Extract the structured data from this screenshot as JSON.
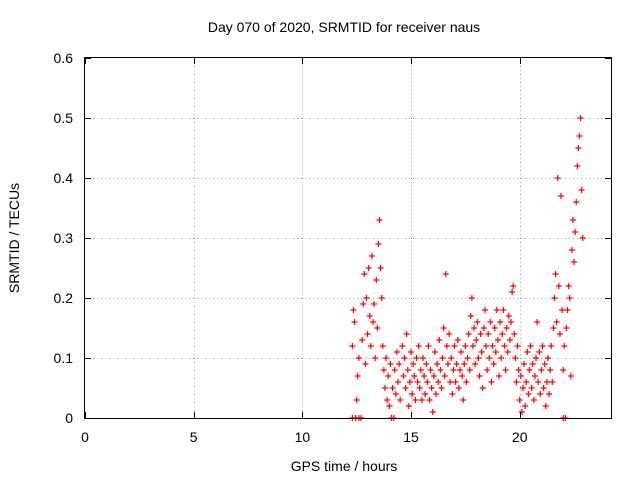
{
  "chart_data": {
    "type": "scatter",
    "title": "Day 070 of 2020, SRMTID for receiver naus",
    "xlabel": "GPS time / hours",
    "ylabel": "SRMTID / TECUs",
    "xlim": [
      0,
      24.2
    ],
    "ylim": [
      0,
      0.6
    ],
    "xticks": [
      0,
      5,
      10,
      15,
      20
    ],
    "xtick_labels": [
      "0",
      "5",
      "10",
      "15",
      "20"
    ],
    "yticks": [
      0,
      0.1,
      0.2,
      0.3,
      0.4,
      0.5,
      0.6
    ],
    "ytick_labels": [
      "0",
      "0.1",
      "0.2",
      "0.3",
      "0.4",
      "0.5",
      "0.6"
    ],
    "grid": true,
    "legend": "none",
    "marker": "+",
    "series": [
      {
        "name": "SRMTID",
        "color": "#ff0000",
        "points": [
          [
            12.3,
            0.12
          ],
          [
            12.3,
            0.0
          ],
          [
            12.35,
            0.18
          ],
          [
            12.4,
            0.16
          ],
          [
            12.45,
            0.0
          ],
          [
            12.5,
            0.03
          ],
          [
            12.55,
            0.07
          ],
          [
            12.6,
            0.1
          ],
          [
            12.6,
            0.0
          ],
          [
            12.7,
            0.0
          ],
          [
            12.75,
            0.13
          ],
          [
            12.8,
            0.19
          ],
          [
            12.85,
            0.24
          ],
          [
            12.9,
            0.09
          ],
          [
            12.95,
            0.2
          ],
          [
            13.0,
            0.14
          ],
          [
            13.05,
            0.25
          ],
          [
            13.1,
            0.17
          ],
          [
            13.15,
            0.12
          ],
          [
            13.2,
            0.27
          ],
          [
            13.25,
            0.16
          ],
          [
            13.3,
            0.19
          ],
          [
            13.35,
            0.1
          ],
          [
            13.4,
            0.23
          ],
          [
            13.45,
            0.15
          ],
          [
            13.5,
            0.29
          ],
          [
            13.55,
            0.33
          ],
          [
            13.6,
            0.25
          ],
          [
            13.65,
            0.2
          ],
          [
            13.7,
            0.12
          ],
          [
            13.75,
            0.08
          ],
          [
            13.8,
            0.05
          ],
          [
            13.85,
            0.1
          ],
          [
            13.9,
            0.03
          ],
          [
            13.95,
            0.07
          ],
          [
            14.0,
            0.02
          ],
          [
            14.05,
            0.09
          ],
          [
            14.1,
            0.0
          ],
          [
            14.15,
            0.05
          ],
          [
            14.2,
            0.0
          ],
          [
            14.25,
            0.08
          ],
          [
            14.3,
            0.04
          ],
          [
            14.35,
            0.11
          ],
          [
            14.4,
            0.06
          ],
          [
            14.45,
            0.09
          ],
          [
            14.5,
            0.03
          ],
          [
            14.6,
            0.12
          ],
          [
            14.65,
            0.07
          ],
          [
            14.7,
            0.1
          ],
          [
            14.75,
            0.05
          ],
          [
            14.8,
            0.14
          ],
          [
            14.85,
            0.08
          ],
          [
            14.9,
            0.02
          ],
          [
            14.95,
            0.06
          ],
          [
            15.0,
            0.11
          ],
          [
            15.05,
            0.04
          ],
          [
            15.1,
            0.09
          ],
          [
            15.15,
            0.07
          ],
          [
            15.2,
            0.03
          ],
          [
            15.25,
            0.1
          ],
          [
            15.3,
            0.06
          ],
          [
            15.35,
            0.12
          ],
          [
            15.4,
            0.05
          ],
          [
            15.45,
            0.08
          ],
          [
            15.5,
            0.03
          ],
          [
            15.55,
            0.1
          ],
          [
            15.6,
            0.07
          ],
          [
            15.65,
            0.04
          ],
          [
            15.7,
            0.09
          ],
          [
            15.75,
            0.06
          ],
          [
            15.8,
            0.12
          ],
          [
            15.85,
            0.03
          ],
          [
            15.9,
            0.08
          ],
          [
            15.95,
            0.05
          ],
          [
            16.0,
            0.01
          ],
          [
            16.05,
            0.07
          ],
          [
            16.1,
            0.11
          ],
          [
            16.15,
            0.04
          ],
          [
            16.2,
            0.09
          ],
          [
            16.25,
            0.06
          ],
          [
            16.3,
            0.13
          ],
          [
            16.35,
            0.08
          ],
          [
            16.4,
            0.05
          ],
          [
            16.45,
            0.1
          ],
          [
            16.5,
            0.15
          ],
          [
            16.55,
            0.07
          ],
          [
            16.6,
            0.24
          ],
          [
            16.65,
            0.12
          ],
          [
            16.7,
            0.09
          ],
          [
            16.75,
            0.14
          ],
          [
            16.8,
            0.06
          ],
          [
            16.85,
            0.1
          ],
          [
            16.9,
            0.04
          ],
          [
            16.95,
            0.08
          ],
          [
            17.0,
            0.12
          ],
          [
            17.05,
            0.06
          ],
          [
            17.1,
            0.09
          ],
          [
            17.15,
            0.13
          ],
          [
            17.2,
            0.05
          ],
          [
            17.25,
            0.08
          ],
          [
            17.3,
            0.11
          ],
          [
            17.35,
            0.07
          ],
          [
            17.4,
            0.03
          ],
          [
            17.45,
            0.09
          ],
          [
            17.5,
            0.12
          ],
          [
            17.55,
            0.06
          ],
          [
            17.6,
            0.1
          ],
          [
            17.65,
            0.14
          ],
          [
            17.7,
            0.08
          ],
          [
            17.75,
            0.17
          ],
          [
            17.8,
            0.2
          ],
          [
            17.85,
            0.12
          ],
          [
            17.9,
            0.15
          ],
          [
            17.95,
            0.09
          ],
          [
            18.0,
            0.13
          ],
          [
            18.05,
            0.16
          ],
          [
            18.1,
            0.1
          ],
          [
            18.15,
            0.07
          ],
          [
            18.2,
            0.14
          ],
          [
            18.25,
            0.11
          ],
          [
            18.3,
            0.05
          ],
          [
            18.35,
            0.15
          ],
          [
            18.4,
            0.18
          ],
          [
            18.45,
            0.12
          ],
          [
            18.5,
            0.08
          ],
          [
            18.55,
            0.14
          ],
          [
            18.6,
            0.1
          ],
          [
            18.65,
            0.16
          ],
          [
            18.7,
            0.06
          ],
          [
            18.75,
            0.12
          ],
          [
            18.8,
            0.09
          ],
          [
            18.85,
            0.15
          ],
          [
            18.9,
            0.11
          ],
          [
            18.95,
            0.18
          ],
          [
            19.0,
            0.13
          ],
          [
            19.05,
            0.07
          ],
          [
            19.1,
            0.16
          ],
          [
            19.15,
            0.1
          ],
          [
            19.2,
            0.14
          ],
          [
            19.25,
            0.18
          ],
          [
            19.3,
            0.12
          ],
          [
            19.35,
            0.08
          ],
          [
            19.4,
            0.15
          ],
          [
            19.45,
            0.11
          ],
          [
            19.5,
            0.17
          ],
          [
            19.55,
            0.13
          ],
          [
            19.6,
            0.16
          ],
          [
            19.65,
            0.21
          ],
          [
            19.7,
            0.22
          ],
          [
            19.75,
            0.14
          ],
          [
            19.8,
            0.1
          ],
          [
            19.85,
            0.06
          ],
          [
            19.9,
            0.12
          ],
          [
            19.95,
            0.08
          ],
          [
            20.0,
            0.03
          ],
          [
            20.05,
            0.07
          ],
          [
            20.1,
            0.01
          ],
          [
            20.15,
            0.05
          ],
          [
            20.2,
            0.09
          ],
          [
            20.25,
            0.02
          ],
          [
            20.3,
            0.06
          ],
          [
            20.35,
            0.11
          ],
          [
            20.4,
            0.04
          ],
          [
            20.45,
            0.08
          ],
          [
            20.5,
            0.12
          ],
          [
            20.55,
            0.05
          ],
          [
            20.6,
            0.09
          ],
          [
            20.65,
            0.03
          ],
          [
            20.7,
            0.07
          ],
          [
            20.75,
            0.1
          ],
          [
            20.8,
            0.16
          ],
          [
            20.85,
            0.06
          ],
          [
            20.9,
            0.11
          ],
          [
            20.95,
            0.04
          ],
          [
            21.0,
            0.08
          ],
          [
            21.05,
            0.12
          ],
          [
            21.1,
            0.05
          ],
          [
            21.15,
            0.09
          ],
          [
            21.2,
            0.02
          ],
          [
            21.25,
            0.06
          ],
          [
            21.3,
            0.1
          ],
          [
            21.35,
            0.04
          ],
          [
            21.4,
            0.08
          ],
          [
            21.45,
            0.12
          ],
          [
            21.5,
            0.06
          ],
          [
            21.55,
            0.15
          ],
          [
            21.6,
            0.2
          ],
          [
            21.65,
            0.24
          ],
          [
            21.7,
            0.16
          ],
          [
            21.75,
            0.4
          ],
          [
            21.8,
            0.22
          ],
          [
            21.85,
            0.14
          ],
          [
            21.9,
            0.37
          ],
          [
            21.95,
            0.18
          ],
          [
            22.0,
            0.08
          ],
          [
            22.05,
            0.12
          ],
          [
            22.0,
            0.0
          ],
          [
            22.1,
            0.0
          ],
          [
            22.15,
            0.15
          ],
          [
            22.2,
            0.18
          ],
          [
            22.25,
            0.22
          ],
          [
            22.3,
            0.2
          ],
          [
            22.35,
            0.07
          ],
          [
            22.4,
            0.28
          ],
          [
            22.45,
            0.33
          ],
          [
            22.5,
            0.26
          ],
          [
            22.55,
            0.31
          ],
          [
            22.6,
            0.36
          ],
          [
            22.65,
            0.42
          ],
          [
            22.7,
            0.45
          ],
          [
            22.75,
            0.47
          ],
          [
            22.8,
            0.5
          ],
          [
            22.85,
            0.38
          ],
          [
            22.9,
            0.3
          ]
        ]
      }
    ]
  }
}
